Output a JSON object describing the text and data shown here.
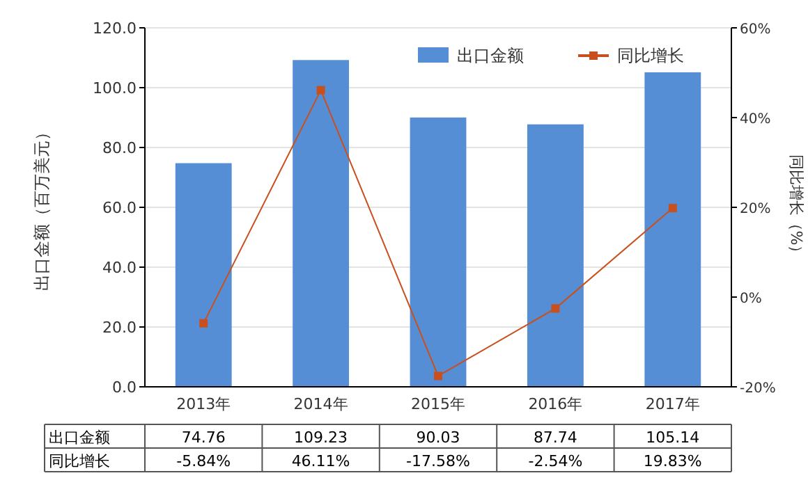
{
  "chart_data": {
    "type": "bar",
    "categories": [
      "2013年",
      "2014年",
      "2015年",
      "2016年",
      "2017年"
    ],
    "series": [
      {
        "name": "出口金额",
        "color": "#558ed5",
        "values": [
          74.76,
          109.23,
          90.03,
          87.74,
          105.14
        ],
        "value_labels": [
          "74.76",
          "109.23",
          "90.03",
          "87.74",
          "105.14"
        ]
      },
      {
        "name": "同比增长",
        "type": "line",
        "axis": "y2",
        "color": "#c8501e",
        "marker": "square",
        "values": [
          -5.84,
          46.11,
          -17.58,
          -2.54,
          19.83
        ],
        "value_labels": [
          "-5.84%",
          "46.11%",
          "-17.58%",
          "-2.54%",
          "19.83%"
        ]
      }
    ],
    "ylabel": "出口金额（百万美元）",
    "y2label": "同比增长（%）",
    "ylim": [
      0,
      120
    ],
    "yticks": [
      {
        "value": 0,
        "label": "0.0"
      },
      {
        "value": 20,
        "label": "20.0"
      },
      {
        "value": 40,
        "label": "40.0"
      },
      {
        "value": 60,
        "label": "60.0"
      },
      {
        "value": 80,
        "label": "80.0"
      },
      {
        "value": 100,
        "label": "100.0"
      },
      {
        "value": 120,
        "label": "120.0"
      }
    ],
    "y2lim": [
      -20,
      60
    ],
    "y2ticks": [
      {
        "value": -20,
        "label": "-20%"
      },
      {
        "value": 0,
        "label": "0%"
      },
      {
        "value": 20,
        "label": "20%"
      },
      {
        "value": 40,
        "label": "40%"
      },
      {
        "value": 60,
        "label": "60%"
      }
    ],
    "grid": "y",
    "legend": "top right"
  }
}
